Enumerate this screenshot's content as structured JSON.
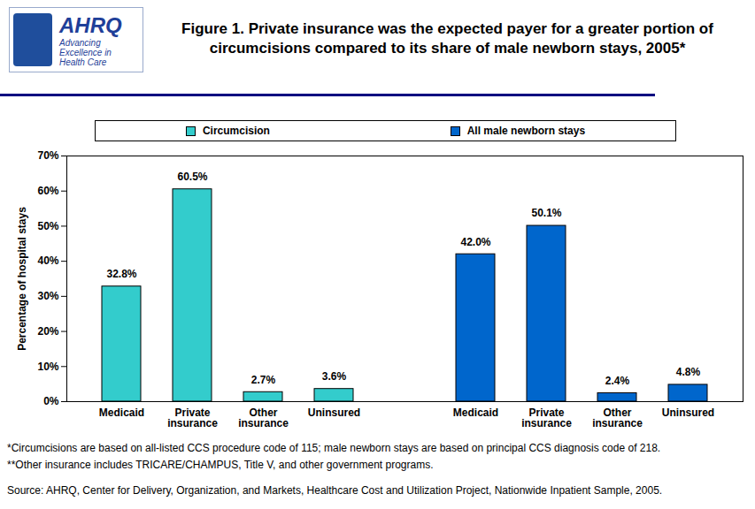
{
  "chart_data": {
    "type": "bar",
    "title": "Figure 1. Private insurance was the expected payer for a greater portion of circumcisions compared to its share of male newborn stays, 2005*",
    "logo": {
      "name": "AHRQ",
      "tagline": "Advancing Excellence in Health Care"
    },
    "y_label": "Percentage of hospital stays",
    "categories": [
      "Medicaid",
      "Private insurance",
      "Other insurance",
      "Uninsured",
      null,
      "Medicaid",
      "Private insurance",
      "Other insurance",
      "Uninsured"
    ],
    "series": [
      {
        "name": "Circumcision",
        "color": "#33cccc",
        "values": [
          32.8,
          60.5,
          2.7,
          3.6,
          null,
          null,
          null,
          null,
          null
        ],
        "value_labels": [
          "32.8%",
          "60.5%",
          "2.7%",
          "3.6%",
          null,
          null,
          null,
          null,
          null
        ]
      },
      {
        "name": "All male newborn stays",
        "color": "#0066cc",
        "values": [
          null,
          null,
          null,
          null,
          null,
          42.0,
          50.1,
          2.4,
          4.8
        ],
        "value_labels": [
          null,
          null,
          null,
          null,
          null,
          "42.0%",
          "50.1%",
          "2.4%",
          "4.8%"
        ]
      }
    ],
    "ylim": [
      0,
      70
    ],
    "yticks": [
      {
        "value": 0,
        "label": "0%"
      },
      {
        "value": 10,
        "label": "10%"
      },
      {
        "value": 20,
        "label": "20%"
      },
      {
        "value": 30,
        "label": "30%"
      },
      {
        "value": 40,
        "label": "40%"
      },
      {
        "value": 50,
        "label": "50%"
      },
      {
        "value": 60,
        "label": "60%"
      },
      {
        "value": 70,
        "label": "70%"
      }
    ],
    "grid": false,
    "legend": "top",
    "data_labels": true,
    "notes": [
      "*Circumcisions are based on all-listed CCS procedure code of 115; male newborn stays are based on principal CCS diagnosis code of 218.",
      "**Other insurance includes TRICARE/CHAMPUS, Title V, and other government programs."
    ],
    "source": "Source: AHRQ, Center for Delivery, Organization, and Markets, Healthcare Cost and Utilization Project, Nationwide Inpatient Sample, 2005."
  }
}
